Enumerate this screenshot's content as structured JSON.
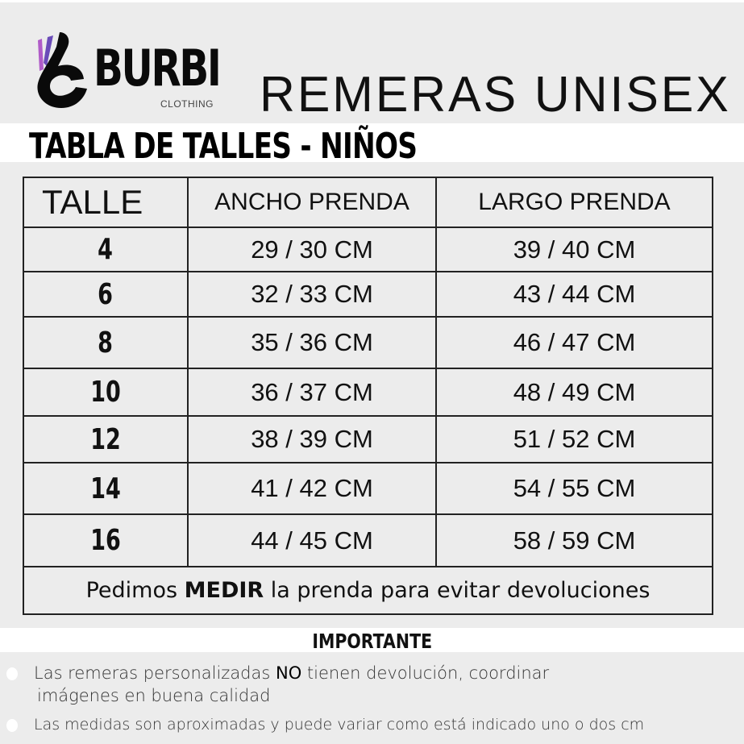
{
  "logo": {
    "brand": "BURBI",
    "sub": "CLOTHING"
  },
  "product_title": "REMERAS UNISEX",
  "table_title": "TABLA DE TALLES - NIÑOS",
  "table": {
    "headers": [
      "TALLE",
      "ANCHO PRENDA",
      "LARGO PRENDA"
    ],
    "rows": [
      {
        "size": "4",
        "ancho": "29 / 30 CM",
        "largo": "39 / 40 CM"
      },
      {
        "size": "6",
        "ancho": "32 / 33 CM",
        "largo": "43 / 44 CM"
      },
      {
        "size": "8",
        "ancho": "35 / 36 CM",
        "largo": "46 / 47 CM"
      },
      {
        "size": "10",
        "ancho": "36 / 37 CM",
        "largo": "48 / 49 CM"
      },
      {
        "size": "12",
        "ancho": "38 / 39 CM",
        "largo": "51 / 52 CM"
      },
      {
        "size": "14",
        "ancho": "41 / 42 CM",
        "largo": "54 / 55 CM"
      },
      {
        "size": "16",
        "ancho": "44 / 45 CM",
        "largo": "58 / 59 CM"
      }
    ],
    "footer": {
      "pre": "Pedimos ",
      "bold": "MEDIR",
      "post": " la prenda para evitar devoluciones"
    }
  },
  "important": {
    "title": "IMPORTANTE",
    "notes": [
      {
        "pre": "Las remeras personalizadas ",
        "bold": "NO",
        "post": " tienen devolución, coordinar",
        "line2": "imágenes en buena calidad"
      },
      {
        "pre": "Las medidas son aproximadas y puede variar como está indicado uno o dos cm"
      }
    ]
  },
  "colors": {
    "background": "#ececec",
    "logo_purple": "#6a4bb8",
    "logo_pink": "#b05cc8"
  }
}
